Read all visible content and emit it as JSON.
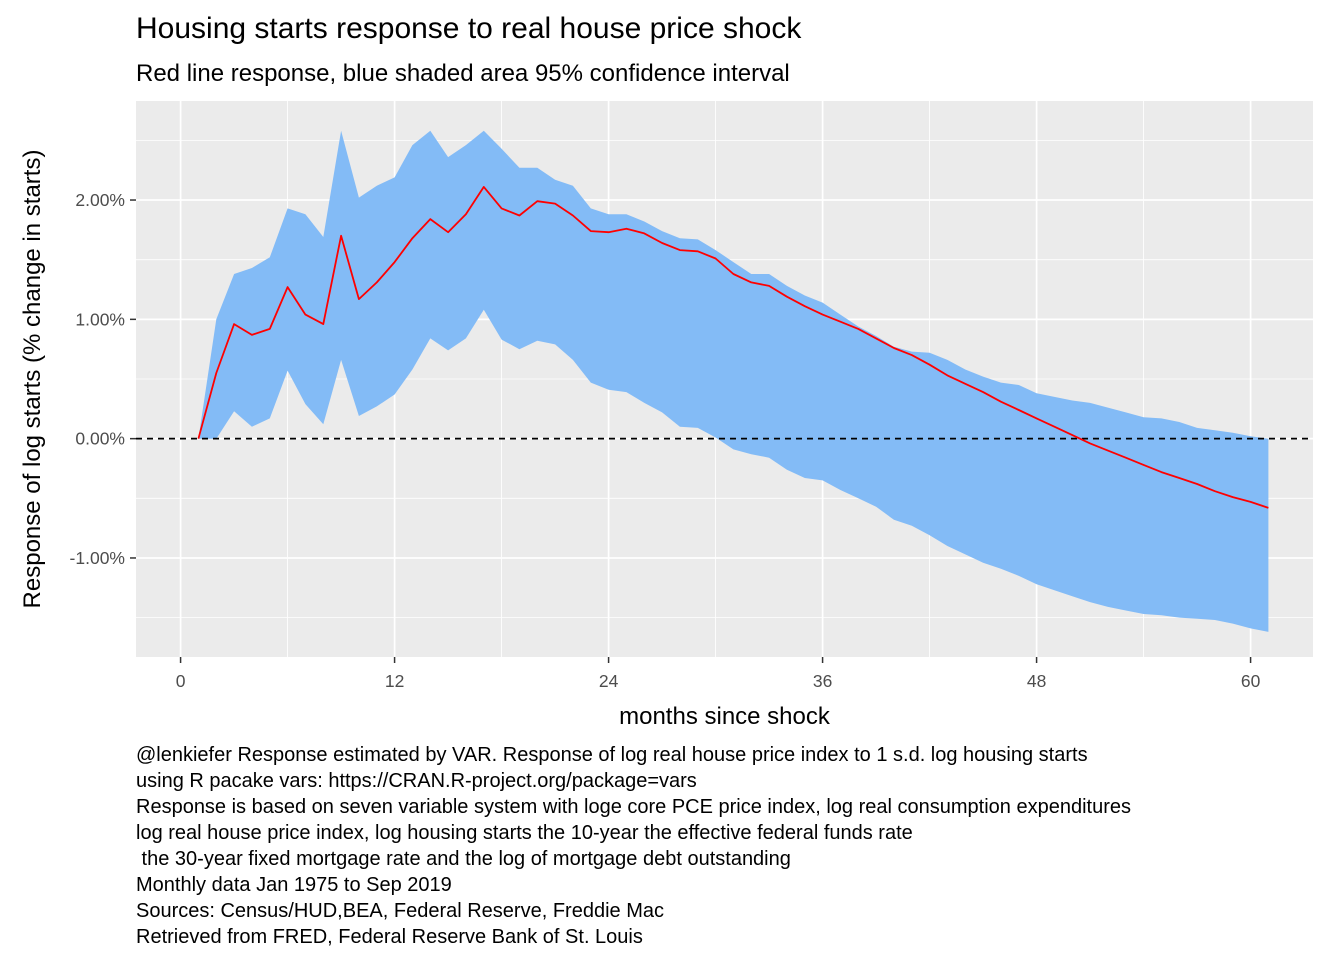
{
  "chart_data": {
    "type": "area",
    "title": "Housing starts response to real house price shock",
    "subtitle": "Red line response, blue shaded area 95% confidence interval",
    "xlabel": "months since shock",
    "ylabel": "Response of log starts (% change in starts)",
    "xlim": [
      -2.5,
      63.5
    ],
    "ylim": [
      -1.83,
      2.83
    ],
    "x_ticks": [
      0,
      12,
      24,
      36,
      48,
      60
    ],
    "x_tick_labels": [
      "0",
      "12",
      "24",
      "36",
      "48",
      "60"
    ],
    "y_ticks": [
      -1,
      0,
      1,
      2
    ],
    "y_tick_labels": [
      "-1.00%",
      "0.00%",
      "1.00%",
      "2.00%"
    ],
    "grid": true,
    "legend": "none",
    "colors": {
      "response": "#ff0000",
      "band": "#83bbf6",
      "panel": "#ebebeb",
      "grid": "#ffffff",
      "zero_line": "#000000"
    },
    "reference_line": {
      "y": 0,
      "style": "dashed"
    },
    "x": [
      1,
      2,
      3,
      4,
      5,
      6,
      7,
      8,
      9,
      10,
      11,
      12,
      13,
      14,
      15,
      16,
      17,
      18,
      19,
      20,
      21,
      22,
      23,
      24,
      25,
      26,
      27,
      28,
      29,
      30,
      31,
      32,
      33,
      34,
      35,
      36,
      37,
      38,
      39,
      40,
      41,
      42,
      43,
      44,
      45,
      46,
      47,
      48,
      49,
      50,
      51,
      52,
      53,
      54,
      55,
      56,
      57,
      58,
      59,
      60,
      61
    ],
    "series": [
      {
        "name": "Response",
        "role": "line",
        "values": [
          0.0,
          0.55,
          0.96,
          0.87,
          0.92,
          1.27,
          1.04,
          0.96,
          1.7,
          1.17,
          1.31,
          1.48,
          1.68,
          1.84,
          1.73,
          1.88,
          2.11,
          1.93,
          1.87,
          1.99,
          1.97,
          1.87,
          1.74,
          1.73,
          1.76,
          1.72,
          1.64,
          1.58,
          1.57,
          1.51,
          1.38,
          1.31,
          1.28,
          1.19,
          1.11,
          1.04,
          0.98,
          0.92,
          0.84,
          0.76,
          0.7,
          0.62,
          0.53,
          0.46,
          0.39,
          0.31,
          0.24,
          0.17,
          0.1,
          0.03,
          -0.04,
          -0.1,
          -0.16,
          -0.22,
          -0.28,
          -0.33,
          -0.38,
          -0.44,
          -0.49,
          -0.53,
          -0.58
        ]
      },
      {
        "name": "Upper 95%",
        "role": "band_upper",
        "values": [
          0.0,
          1.0,
          1.38,
          1.43,
          1.52,
          1.93,
          1.88,
          1.69,
          2.58,
          2.02,
          2.12,
          2.19,
          2.46,
          2.58,
          2.36,
          2.46,
          2.58,
          2.43,
          2.27,
          2.27,
          2.17,
          2.12,
          1.93,
          1.88,
          1.88,
          1.82,
          1.74,
          1.68,
          1.67,
          1.58,
          1.48,
          1.38,
          1.38,
          1.28,
          1.2,
          1.14,
          1.04,
          0.94,
          0.86,
          0.77,
          0.73,
          0.72,
          0.66,
          0.58,
          0.52,
          0.47,
          0.45,
          0.38,
          0.35,
          0.32,
          0.3,
          0.26,
          0.22,
          0.18,
          0.17,
          0.14,
          0.09,
          0.07,
          0.05,
          0.02,
          0.0
        ]
      },
      {
        "name": "Lower 95%",
        "role": "band_lower",
        "values": [
          0.0,
          0.0,
          0.23,
          0.1,
          0.17,
          0.57,
          0.29,
          0.12,
          0.66,
          0.19,
          0.27,
          0.37,
          0.58,
          0.84,
          0.74,
          0.84,
          1.08,
          0.83,
          0.75,
          0.82,
          0.79,
          0.66,
          0.47,
          0.41,
          0.39,
          0.3,
          0.22,
          0.1,
          0.09,
          0.01,
          -0.09,
          -0.13,
          -0.16,
          -0.26,
          -0.33,
          -0.35,
          -0.43,
          -0.5,
          -0.57,
          -0.68,
          -0.73,
          -0.81,
          -0.9,
          -0.97,
          -1.04,
          -1.09,
          -1.15,
          -1.22,
          -1.27,
          -1.32,
          -1.37,
          -1.41,
          -1.44,
          -1.47,
          -1.48,
          -1.5,
          -1.51,
          -1.52,
          -1.55,
          -1.59,
          -1.62
        ]
      }
    ]
  },
  "caption": [
    "@lenkiefer Response estimated by VAR. Response of log real house price index to 1 s.d. log housing starts",
    "using R pacake vars: https://CRAN.R-project.org/package=vars",
    "Response is based on seven variable system with loge core PCE price index, log real consumption expenditures",
    "log real house price index, log housing starts the 10-year the effective federal funds rate",
    " the 30-year fixed mortgage rate and the log of mortgage debt outstanding",
    "Monthly data Jan 1975 to Sep 2019",
    "Sources: Census/HUD,BEA, Federal Reserve, Freddie Mac",
    "Retrieved from FRED, Federal Reserve Bank of St. Louis"
  ]
}
